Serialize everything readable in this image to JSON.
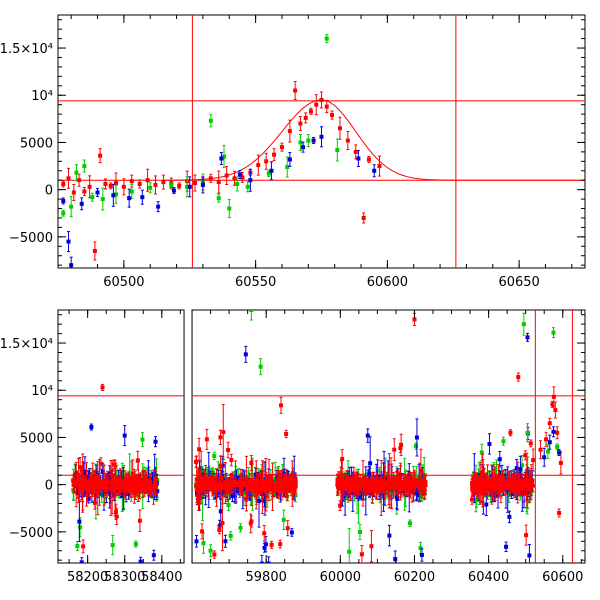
{
  "chart_data": [
    {
      "type": "scatter",
      "panel": "top",
      "xlim": [
        60475,
        60675
      ],
      "ylim": [
        -8300,
        18500
      ],
      "xticks": [
        60500,
        60550,
        60600,
        60650
      ],
      "xtick_labels": [
        "60500",
        "60550",
        "60600",
        "60650"
      ],
      "yticks": [
        -5000,
        0,
        5000,
        10000,
        15000
      ],
      "ytick_labels": [
        "−5000",
        "0",
        "5000",
        "10⁴",
        "1.5×10⁴"
      ],
      "hlines": [
        9400,
        1000
      ],
      "vlines": [
        60526,
        60626
      ],
      "model_curve": {
        "baseline": 1000,
        "peak_x": 60575,
        "peak_y": 9500,
        "rise_width": 15,
        "decay_width": 13
      },
      "series": [
        {
          "color": "#ff0000",
          "points": [
            [
              60477,
              600
            ],
            [
              60479,
              1200
            ],
            [
              60481,
              -300
            ],
            [
              60483,
              1000
            ],
            [
              60485,
              -200
            ],
            [
              60487,
              300
            ],
            [
              60489,
              -6500
            ],
            [
              60491,
              3600
            ],
            [
              60493,
              600
            ],
            [
              60495,
              400
            ],
            [
              60497,
              700
            ],
            [
              60500,
              300
            ],
            [
              60503,
              900
            ],
            [
              60506,
              600
            ],
            [
              60509,
              1000
            ],
            [
              60512,
              500
            ],
            [
              60515,
              800
            ],
            [
              60518,
              700
            ],
            [
              60521,
              400
            ],
            [
              60524,
              900
            ],
            [
              60527,
              700
            ],
            [
              60530,
              600
            ],
            [
              60533,
              1200
            ],
            [
              60536,
              800
            ],
            [
              60539,
              1500
            ],
            [
              60542,
              1200
            ],
            [
              60545,
              1300
            ],
            [
              60548,
              1800
            ],
            [
              60551,
              2600
            ],
            [
              60554,
              3000
            ],
            [
              60557,
              3700
            ],
            [
              60560,
              4500
            ],
            [
              60563,
              6200
            ],
            [
              60565,
              10500
            ],
            [
              60567,
              7000
            ],
            [
              60569,
              7600
            ],
            [
              60571,
              8300
            ],
            [
              60573,
              9000
            ],
            [
              60575,
              9500
            ],
            [
              60577,
              8800
            ],
            [
              60579,
              7900
            ],
            [
              60582,
              6500
            ],
            [
              60585,
              5200
            ],
            [
              60588,
              4000
            ],
            [
              60591,
              -3000
            ],
            [
              60593,
              3200
            ],
            [
              60597,
              2500
            ]
          ]
        },
        {
          "color": "#00cc00",
          "points": [
            [
              60477,
              -2500
            ],
            [
              60480,
              -1800
            ],
            [
              60482,
              1800
            ],
            [
              60485,
              2500
            ],
            [
              60488,
              -800
            ],
            [
              60492,
              -1000
            ],
            [
              60497,
              -500
            ],
            [
              60503,
              -200
            ],
            [
              60510,
              200
            ],
            [
              60518,
              400
            ],
            [
              60524,
              300
            ],
            [
              60530,
              800
            ],
            [
              60533,
              7300
            ],
            [
              60536,
              -900
            ],
            [
              60538,
              3500
            ],
            [
              60540,
              -2000
            ],
            [
              60543,
              600
            ],
            [
              60547,
              300
            ],
            [
              60555,
              1700
            ],
            [
              60562,
              2400
            ],
            [
              60567,
              5000
            ],
            [
              60570,
              5200
            ],
            [
              60577,
              16000
            ],
            [
              60581,
              4200
            ]
          ]
        },
        {
          "color": "#0000dd",
          "points": [
            [
              60477,
              -1200
            ],
            [
              60479,
              -5500
            ],
            [
              60480,
              -8000
            ],
            [
              60484,
              -1500
            ],
            [
              60490,
              -300
            ],
            [
              60496,
              -600
            ],
            [
              60502,
              -900
            ],
            [
              60507,
              -800
            ],
            [
              60513,
              -1800
            ],
            [
              60519,
              -100
            ],
            [
              60525,
              300
            ],
            [
              60530,
              500
            ],
            [
              60537,
              3300
            ],
            [
              60544,
              1600
            ],
            [
              60548,
              1000
            ],
            [
              60556,
              2000
            ],
            [
              60563,
              3200
            ],
            [
              60568,
              4500
            ],
            [
              60572,
              5200
            ],
            [
              60575,
              5600
            ],
            [
              60589,
              3300
            ],
            [
              60595,
              2000
            ]
          ]
        }
      ]
    },
    {
      "type": "scatter",
      "panel": "bottom",
      "xlim": [
        58120,
        60660
      ],
      "ylim": [
        -8300,
        18500
      ],
      "x_gaps": [
        [
          58460,
          59600
        ]
      ],
      "xticks": [
        58200,
        58300,
        58400,
        59800,
        60000,
        60200,
        60400,
        60600
      ],
      "xtick_labels": [
        "58200",
        "58300",
        "58400",
        "59800",
        "60000",
        "60200",
        "60400",
        "60600"
      ],
      "yticks": [
        -5000,
        0,
        5000,
        10000,
        15000
      ],
      "ytick_labels": [
        "−5000",
        "0",
        "5000",
        "10⁴",
        "1.5×10⁴"
      ],
      "hlines": [
        9400,
        1000
      ],
      "vlines": [
        60526,
        60626
      ],
      "clusters": [
        {
          "x": [
            58160,
            58390
          ],
          "spread": 1500,
          "count": 130
        },
        {
          "x": [
            59610,
            59880
          ],
          "spread": 1700,
          "count": 150
        },
        {
          "x": [
            59990,
            60230
          ],
          "spread": 1500,
          "count": 130
        },
        {
          "x": [
            60355,
            60520
          ],
          "spread": 1300,
          "count": 110
        }
      ],
      "series": [
        {
          "color": "#ff0000",
          "points": [
            [
              58240,
              10300
            ],
            [
              59640,
              4800
            ],
            [
              59840,
              8400
            ],
            [
              60200,
              17500
            ],
            [
              60480,
              11400
            ],
            [
              60520,
              2600
            ],
            [
              60540,
              3700
            ],
            [
              60555,
              4800
            ],
            [
              60565,
              6500
            ],
            [
              60572,
              8500
            ],
            [
              60576,
              9300
            ],
            [
              60580,
              7900
            ],
            [
              60585,
              5500
            ],
            [
              60590,
              -3000
            ],
            [
              60595,
              2300
            ]
          ]
        },
        {
          "color": "#00cc00",
          "points": [
            [
              58330,
              -6300
            ],
            [
              59760,
              18500
            ],
            [
              59785,
              12500
            ],
            [
              59650,
              -7000
            ],
            [
              60440,
              4600
            ],
            [
              60495,
              17000
            ],
            [
              60505,
              5500
            ],
            [
              60560,
              3500
            ],
            [
              60575,
              16100
            ],
            [
              60585,
              4000
            ]
          ]
        },
        {
          "color": "#0000dd",
          "points": [
            [
              58210,
              6100
            ],
            [
              58300,
              5200
            ],
            [
              59745,
              13800
            ],
            [
              59690,
              -6000
            ],
            [
              60505,
              15600
            ],
            [
              60510,
              -7500
            ],
            [
              60550,
              2900
            ],
            [
              60565,
              4500
            ],
            [
              60575,
              5600
            ],
            [
              60590,
              3400
            ]
          ]
        }
      ]
    }
  ]
}
